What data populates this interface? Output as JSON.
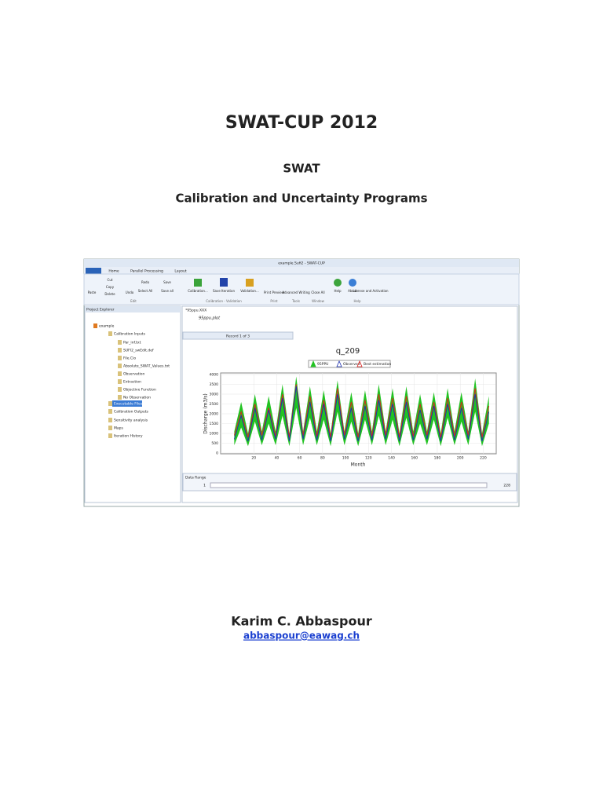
{
  "title": "SWAT-CUP 2012",
  "program": "SWAT",
  "subtitle": "Calibration and Uncertainty Programs",
  "author": "Karim C. Abbaspour",
  "email": "abbaspour@eawag.ch",
  "screenshot": {
    "window_title": "example.Sufi2 - SWAT-CUP",
    "tabs": [
      "Home",
      "Parallel Processing",
      "Layout"
    ],
    "buttons": [
      "Paste",
      "Cut",
      "Copy",
      "Delete",
      "Undo",
      "Redo",
      "Select All",
      "Save",
      "Save all",
      "Calibration...",
      "Save Iteration",
      "Validation...",
      "Print Preview",
      "Advanced Writing",
      "Close All",
      "Help",
      "About",
      "License and Activation"
    ],
    "groups": [
      "Edit",
      "Calibration - Validation",
      "Print",
      "Tools",
      "Window",
      "Help"
    ],
    "panel_title": "Project Explorer",
    "tree": [
      "example",
      "Calibration Inputs",
      "Par_inf.txt",
      "SUFI2_swEdit.def",
      "File.Cio",
      "Absolute_SWAT_Values.txt",
      "Observation",
      "Extraction",
      "Objective Function",
      "No Observation",
      "Executable Files",
      "Calibration Outputs",
      "Sensitivity analysis",
      "Maps",
      "Iteration History"
    ],
    "document_tab": "*95ppu.XXX",
    "document_name": "95ppu.plot",
    "record": "Record 1 of 3",
    "range_title": "Data Range",
    "range": [
      1,
      228
    ]
  },
  "chart_data": {
    "type": "line",
    "title": "q_209",
    "x_label": "Month",
    "y_label": "Discharge (m3/s)",
    "x": [
      3,
      9,
      15,
      21,
      27,
      33,
      39,
      45,
      51,
      57,
      63,
      69,
      75,
      81,
      87,
      93,
      99,
      105,
      111,
      117,
      123,
      129,
      135,
      141,
      147,
      153,
      159,
      165,
      171,
      177,
      183,
      189,
      195,
      201,
      207,
      213,
      219,
      225
    ],
    "band": {
      "name": "95PPU",
      "color": "#22c322",
      "lower": [
        400,
        1300,
        350,
        1600,
        400,
        1500,
        400,
        1900,
        350,
        2300,
        400,
        1800,
        400,
        1700,
        350,
        2100,
        400,
        1600,
        350,
        1700,
        400,
        1900,
        400,
        1700,
        350,
        1800,
        400,
        1500,
        400,
        1700,
        350,
        1800,
        400,
        1600,
        400,
        2100,
        350,
        1500
      ],
      "upper": [
        1100,
        2600,
        1000,
        3000,
        1100,
        2900,
        1100,
        3500,
        1000,
        3900,
        1100,
        3400,
        1100,
        3200,
        1000,
        3700,
        1100,
        3100,
        1000,
        3200,
        1100,
        3500,
        1100,
        3300,
        1000,
        3400,
        1100,
        3000,
        1100,
        3100,
        1000,
        3300,
        1100,
        3100,
        1100,
        3800,
        1000,
        2900
      ]
    },
    "series": [
      {
        "name": "Observed",
        "color": "#1c2fb0",
        "values": [
          700,
          1900,
          600,
          2300,
          650,
          2200,
          700,
          2800,
          600,
          3400,
          700,
          2600,
          650,
          2500,
          600,
          3000,
          700,
          2300,
          600,
          2400,
          650,
          2700,
          700,
          2500,
          600,
          2600,
          650,
          2200,
          700,
          2400,
          600,
          2500,
          650,
          2300,
          700,
          3000,
          600,
          2100
        ]
      },
      {
        "name": "Best estimation",
        "color": "#e0201c",
        "values": [
          900,
          2100,
          800,
          2500,
          900,
          2300,
          850,
          3000,
          800,
          3500,
          900,
          2900,
          850,
          2700,
          800,
          3300,
          900,
          2600,
          800,
          2700,
          850,
          3000,
          900,
          2800,
          800,
          2900,
          850,
          2500,
          900,
          2600,
          800,
          2800,
          850,
          2600,
          900,
          3300,
          800,
          2400
        ]
      }
    ],
    "xlim": [
      0,
      230
    ],
    "ylim": [
      0,
      4000
    ],
    "xticks": [
      20,
      40,
      60,
      80,
      100,
      120,
      140,
      160,
      180,
      200,
      220
    ],
    "yticks": [
      0,
      500,
      1000,
      1500,
      2000,
      2500,
      3000,
      3500,
      4000
    ],
    "grid": true
  }
}
